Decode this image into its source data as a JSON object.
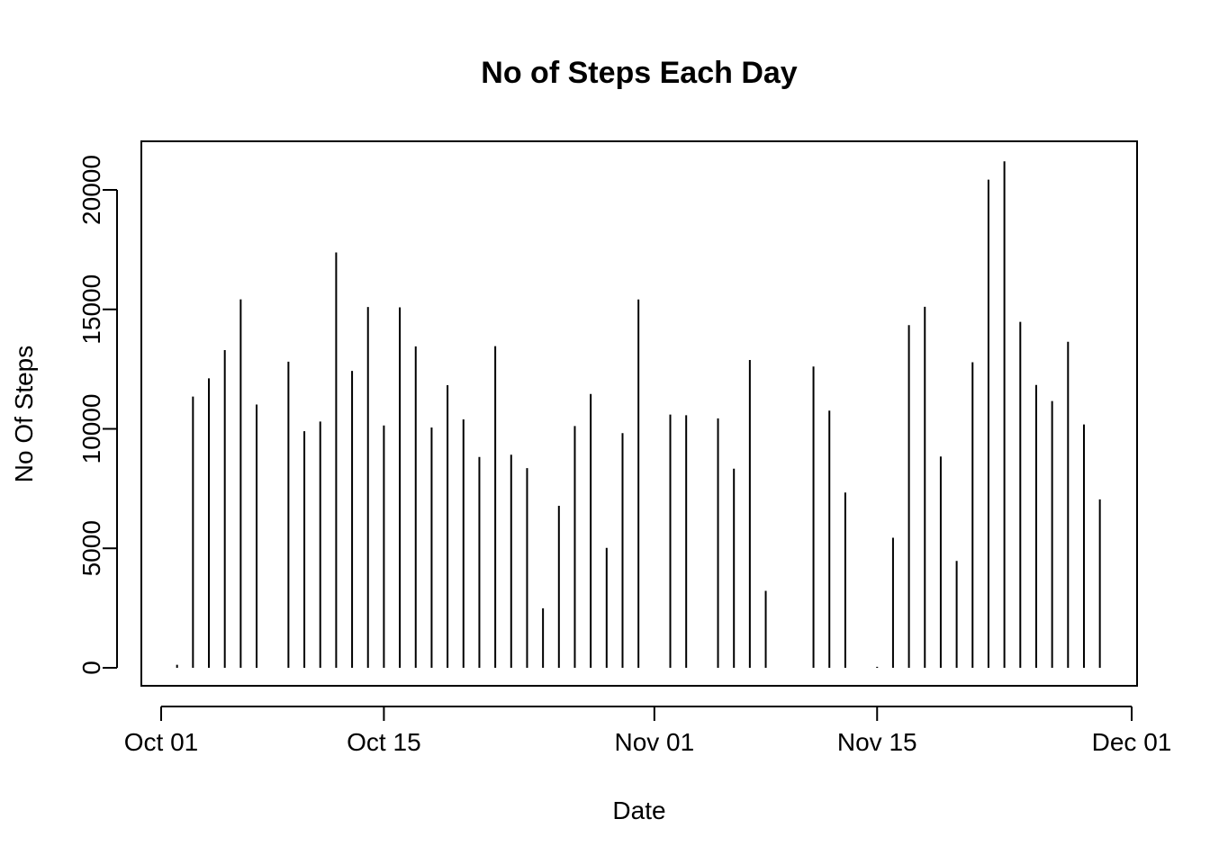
{
  "chart_data": {
    "type": "bar",
    "title": "No of Steps Each Day",
    "xlabel": "Date",
    "ylabel": "No Of Steps",
    "xlim": [
      "2012-09-30",
      "2012-12-01"
    ],
    "ylim": [
      0,
      21194
    ],
    "grid": false,
    "legend": "none",
    "x_ticks": [
      {
        "date": "2012-10-01",
        "label": "Oct 01"
      },
      {
        "date": "2012-10-15",
        "label": "Oct 15"
      },
      {
        "date": "2012-11-01",
        "label": "Nov 01"
      },
      {
        "date": "2012-11-15",
        "label": "Nov 15"
      },
      {
        "date": "2012-12-01",
        "label": "Dec 01"
      }
    ],
    "y_ticks": [
      {
        "value": 0,
        "label": "0"
      },
      {
        "value": 5000,
        "label": "5000"
      },
      {
        "value": 10000,
        "label": "10000"
      },
      {
        "value": 15000,
        "label": "15000"
      },
      {
        "value": 20000,
        "label": "20000"
      }
    ],
    "series": [
      {
        "dates": [
          "2012-10-02",
          "2012-10-03",
          "2012-10-04",
          "2012-10-05",
          "2012-10-06",
          "2012-10-07",
          "2012-10-09",
          "2012-10-10",
          "2012-10-11",
          "2012-10-12",
          "2012-10-13",
          "2012-10-14",
          "2012-10-15",
          "2012-10-16",
          "2012-10-17",
          "2012-10-18",
          "2012-10-19",
          "2012-10-20",
          "2012-10-21",
          "2012-10-22",
          "2012-10-23",
          "2012-10-24",
          "2012-10-25",
          "2012-10-26",
          "2012-10-27",
          "2012-10-28",
          "2012-10-29",
          "2012-10-30",
          "2012-10-31",
          "2012-11-02",
          "2012-11-03",
          "2012-11-05",
          "2012-11-06",
          "2012-11-07",
          "2012-11-08",
          "2012-11-11",
          "2012-11-12",
          "2012-11-13",
          "2012-11-15",
          "2012-11-16",
          "2012-11-17",
          "2012-11-18",
          "2012-11-19",
          "2012-11-20",
          "2012-11-21",
          "2012-11-22",
          "2012-11-23",
          "2012-11-24",
          "2012-11-25",
          "2012-11-26",
          "2012-11-27",
          "2012-11-28",
          "2012-11-29"
        ],
        "values": [
          126,
          11352,
          12116,
          13294,
          15420,
          11015,
          12811,
          9900,
          10304,
          17382,
          12426,
          15098,
          10139,
          15084,
          13452,
          10056,
          11829,
          10395,
          8821,
          13460,
          8918,
          8355,
          2492,
          6778,
          10119,
          11458,
          5018,
          9819,
          15414,
          10600,
          10571,
          10439,
          8334,
          12883,
          3219,
          12608,
          10765,
          7336,
          41,
          5441,
          14339,
          15110,
          8841,
          4472,
          12787,
          20427,
          21194,
          14478,
          11834,
          11162,
          13646,
          10183,
          7047
        ]
      }
    ]
  }
}
